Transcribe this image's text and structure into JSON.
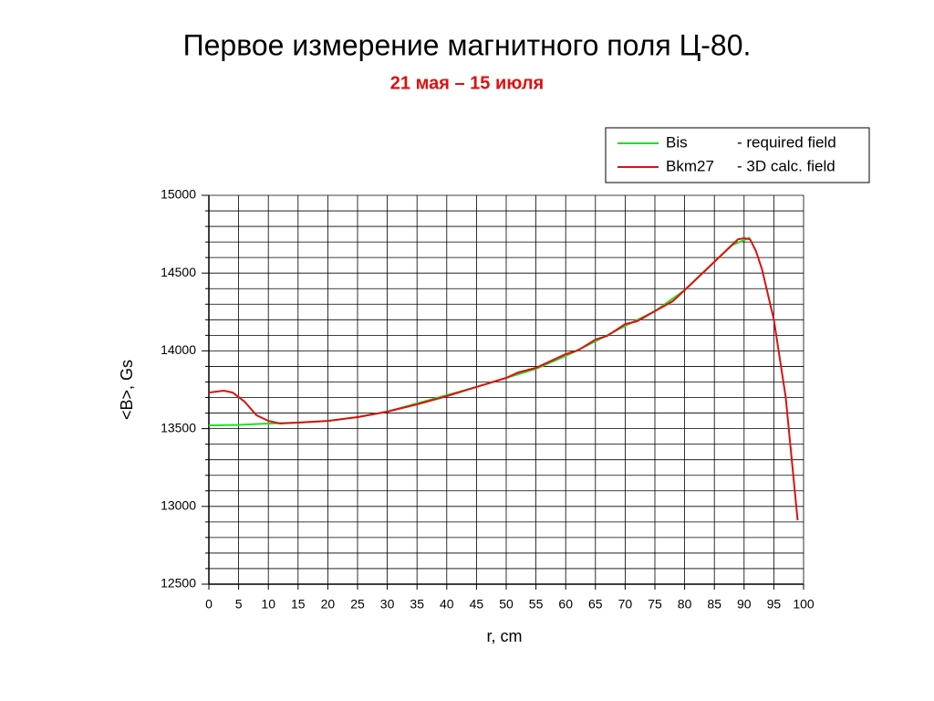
{
  "chart_data": {
    "type": "line",
    "title": "Первое измерение магнитного поля Ц-80.",
    "subtitle": "21 мая – 15 июля",
    "xlabel": "r, cm",
    "ylabel": "<B>, Gs",
    "xlim": [
      0,
      100
    ],
    "xticks": [
      0,
      5,
      10,
      15,
      20,
      25,
      30,
      35,
      40,
      45,
      50,
      55,
      60,
      65,
      70,
      75,
      80,
      85,
      90,
      95,
      100
    ],
    "ylim": [
      12500,
      15000
    ],
    "yticks": [
      12500,
      13000,
      13500,
      14000,
      14500,
      15000
    ],
    "yminorticks": [
      12600,
      12700,
      12800,
      12900,
      13100,
      13200,
      13300,
      13400,
      13600,
      13700,
      13800,
      13900,
      14100,
      14200,
      14300,
      14400,
      14600,
      14700,
      14800,
      14900
    ],
    "grid": true,
    "legend": "top-right",
    "series": [
      {
        "name": "Bis",
        "description": "- required field",
        "color": "#22dd22",
        "x": [
          0,
          5,
          10,
          15,
          20,
          25,
          30,
          35,
          40,
          45,
          50,
          55,
          60,
          65,
          70,
          75,
          80,
          85,
          88,
          90,
          91
        ],
        "values": [
          13521,
          13524,
          13533,
          13539,
          13550,
          13574,
          13609,
          13662,
          13715,
          13768,
          13826,
          13885,
          13967,
          14061,
          14160,
          14255,
          14390,
          14572,
          14680,
          14712,
          14730
        ]
      },
      {
        "name": "Bkm27",
        "description": "- 3D calc. field",
        "color": "#dd1111",
        "x": [
          0,
          2.5,
          4,
          6,
          8,
          10,
          12,
          15,
          20,
          25,
          30,
          35,
          40,
          45,
          50,
          52,
          55,
          60,
          62,
          65,
          67,
          70,
          72,
          75,
          78,
          80,
          85,
          88,
          89,
          90,
          91,
          92,
          93,
          95,
          97,
          99
        ],
        "values": [
          13732,
          13744,
          13732,
          13674,
          13586,
          13550,
          13533,
          13539,
          13550,
          13574,
          13609,
          13656,
          13709,
          13768,
          13826,
          13861,
          13891,
          13979,
          14002,
          14073,
          14096,
          14172,
          14190,
          14255,
          14319,
          14390,
          14572,
          14683,
          14718,
          14724,
          14718,
          14642,
          14525,
          14202,
          13703,
          12911
        ]
      }
    ]
  }
}
